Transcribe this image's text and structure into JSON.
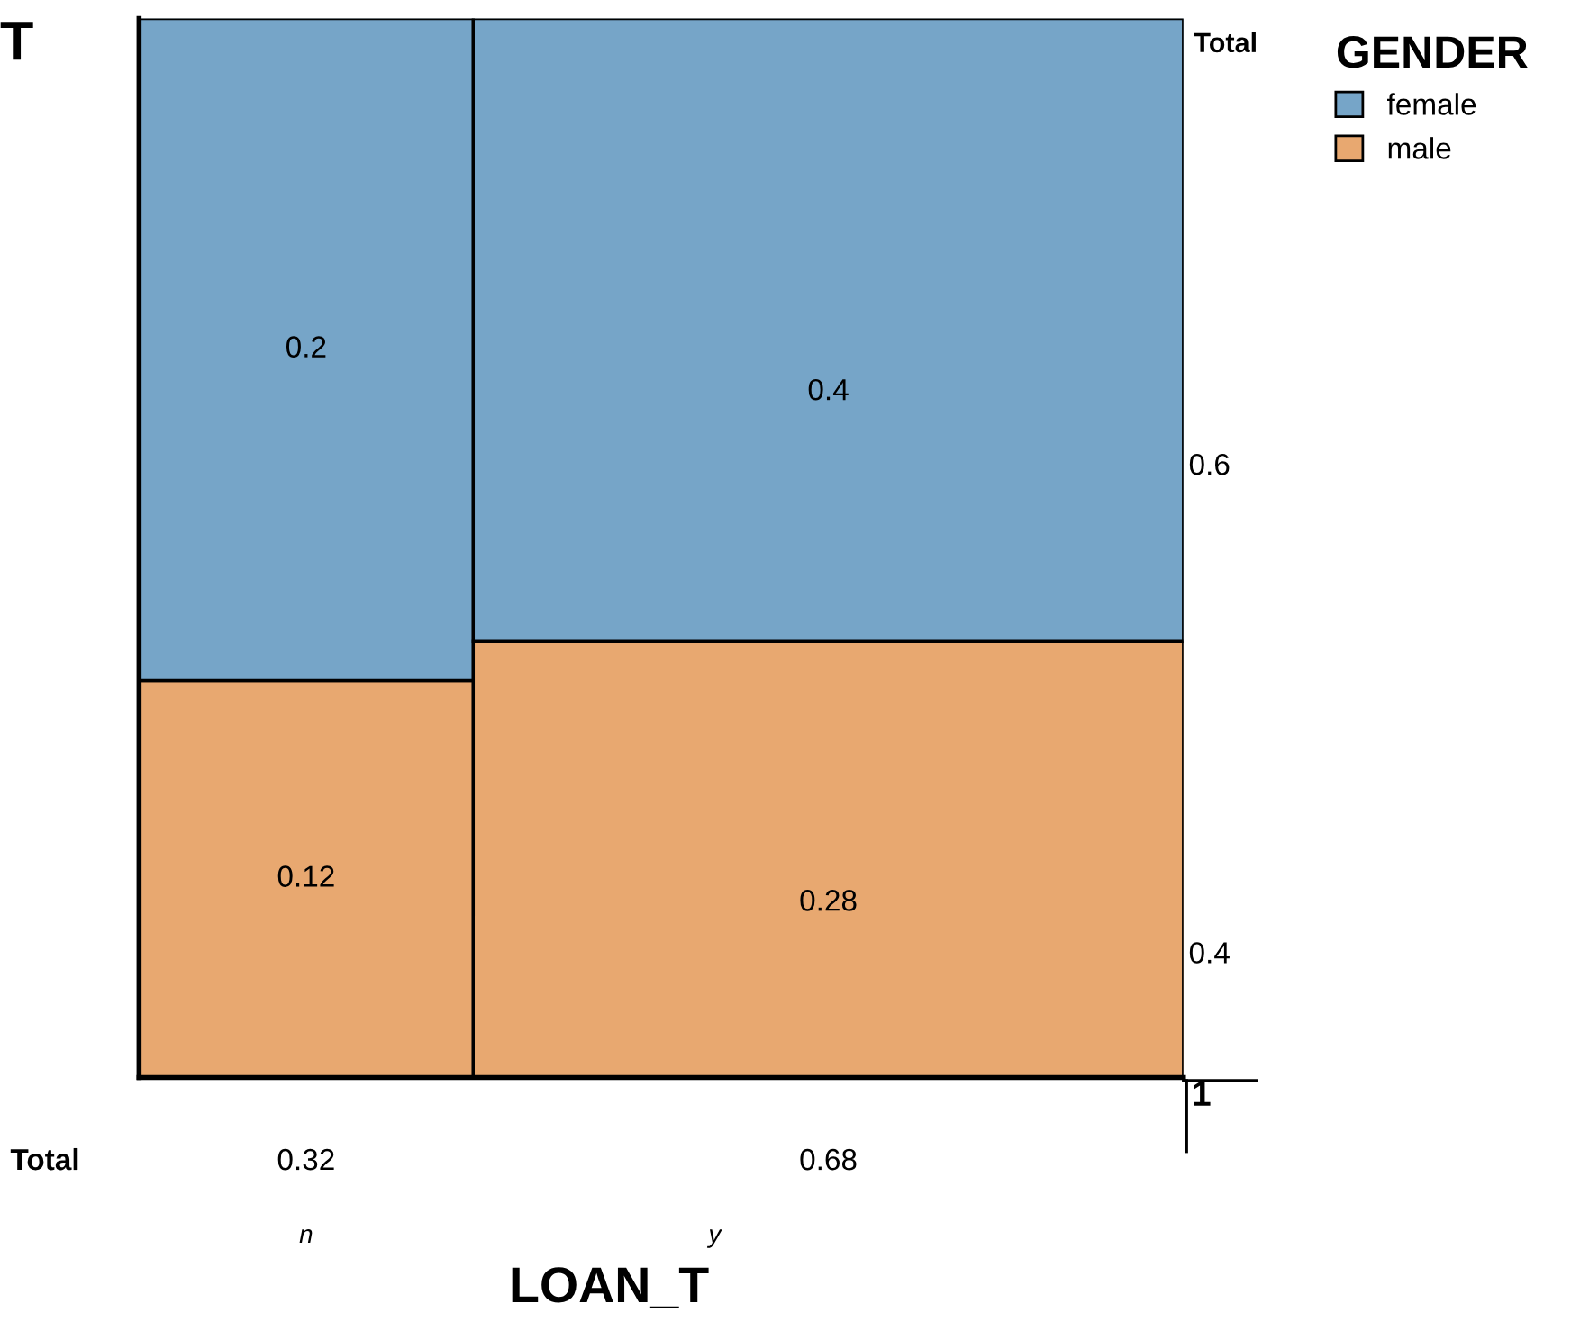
{
  "chart_data": {
    "type": "other",
    "title": "T",
    "xlabel": "LOAN_T",
    "legend_title": "GENDER",
    "categories": [
      "n",
      "y"
    ],
    "series": [
      {
        "name": "female",
        "color": "#76a5c8",
        "values": [
          0.2,
          0.4
        ]
      },
      {
        "name": "male",
        "color": "#e8a870",
        "values": [
          0.12,
          0.28
        ]
      }
    ],
    "data_labels": true,
    "totals": [
      "0.32",
      "0.68"
    ],
    "annotations": [
      "Total",
      "0.6",
      "0.4",
      "1",
      "Total"
    ],
    "legend": "top right"
  }
}
